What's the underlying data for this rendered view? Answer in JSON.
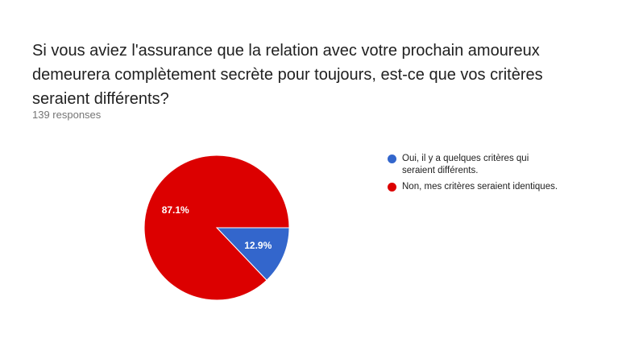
{
  "question": {
    "title": "Si vous aviez l'assurance que la relation avec votre prochain amoureux demeurera complètement secrète pour toujours, est-ce que vos critères seraient différents?",
    "responses": "139 responses"
  },
  "chart_data": {
    "type": "pie",
    "categories": [
      "Oui, il y a quelques critères qui seraient différents.",
      "Non, mes critères seraient identiques."
    ],
    "values": [
      12.9,
      87.1
    ],
    "value_labels": [
      "12.9%",
      "87.1%"
    ],
    "colors": [
      "#3366cc",
      "#dc0000"
    ],
    "legend_position": "right"
  }
}
